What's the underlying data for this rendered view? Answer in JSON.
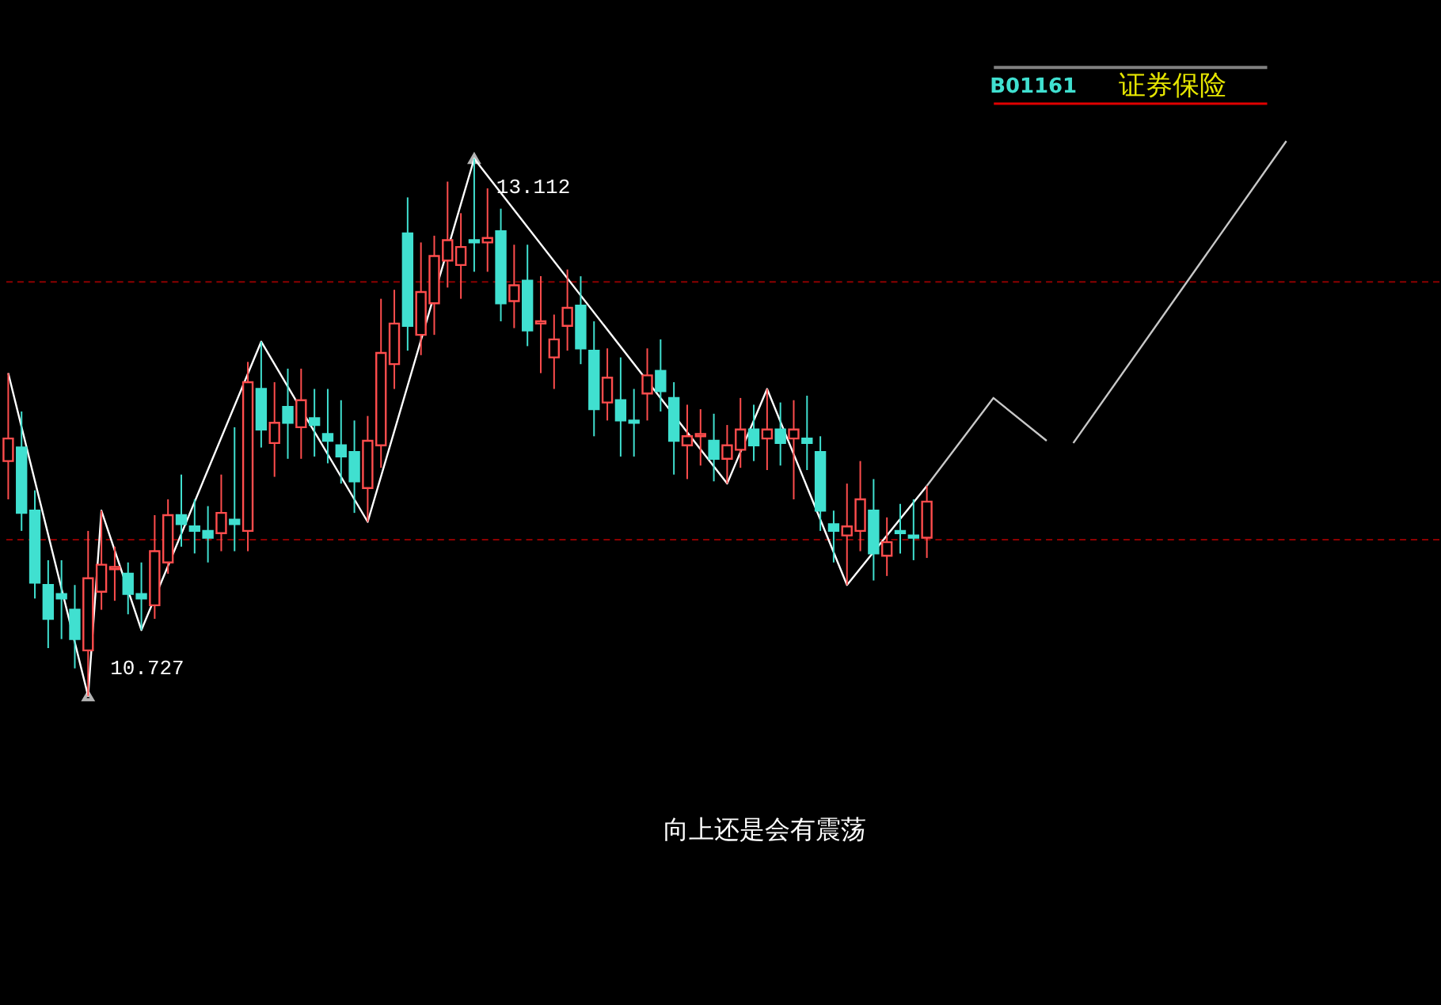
{
  "chart_data": {
    "type": "candlestick",
    "categories": [
      null,
      null,
      null,
      null,
      null,
      null,
      null,
      null,
      null,
      null,
      null,
      null,
      null,
      null,
      null,
      null,
      null,
      null,
      null,
      null,
      null,
      null,
      null,
      null,
      null,
      null,
      null,
      null,
      null,
      null,
      null,
      null,
      null,
      null,
      null,
      null,
      null,
      null,
      null,
      null,
      null,
      null,
      null,
      null,
      null,
      null,
      null,
      null,
      null,
      null,
      null,
      null,
      null,
      null,
      null,
      null,
      null,
      null,
      null,
      null,
      null,
      null,
      null,
      null,
      null,
      null,
      null,
      null,
      null,
      null,
      null,
      null,
      null,
      null,
      null,
      null,
      null,
      null,
      null,
      null,
      null,
      null,
      null,
      null,
      null,
      null,
      null,
      null,
      null,
      null,
      null,
      null,
      null,
      null,
      null,
      null,
      null,
      null,
      null,
      null,
      null,
      null,
      null,
      null,
      null,
      null,
      null,
      null
    ],
    "ohlc": [
      [
        11.77,
        12.16,
        11.6,
        11.87
      ],
      [
        11.83,
        11.99,
        11.46,
        11.54
      ],
      [
        11.55,
        11.64,
        11.16,
        11.23
      ],
      [
        11.22,
        11.33,
        10.94,
        11.07
      ],
      [
        11.18,
        11.33,
        10.98,
        11.16
      ],
      [
        11.11,
        11.22,
        10.85,
        10.98
      ],
      [
        10.93,
        11.46,
        10.727,
        11.25
      ],
      [
        11.19,
        11.55,
        11.11,
        11.31
      ],
      [
        11.29,
        11.39,
        11.15,
        11.3
      ],
      [
        11.27,
        11.32,
        11.09,
        11.18
      ],
      [
        11.18,
        11.32,
        11.02,
        11.16
      ],
      [
        11.13,
        11.53,
        11.07,
        11.37
      ],
      [
        11.32,
        11.6,
        11.27,
        11.53
      ],
      [
        11.53,
        11.71,
        11.39,
        11.49
      ],
      [
        11.48,
        11.6,
        11.36,
        11.46
      ],
      [
        11.46,
        11.57,
        11.32,
        11.43
      ],
      [
        11.45,
        11.71,
        11.37,
        11.54
      ],
      [
        11.51,
        11.92,
        11.37,
        11.49
      ],
      [
        11.46,
        12.21,
        11.37,
        12.12
      ],
      [
        12.09,
        12.3,
        11.83,
        11.91
      ],
      [
        11.85,
        12.12,
        11.7,
        11.94
      ],
      [
        12.01,
        12.18,
        11.78,
        11.94
      ],
      [
        11.92,
        12.18,
        11.78,
        12.04
      ],
      [
        11.96,
        12.09,
        11.79,
        11.93
      ],
      [
        11.89,
        12.09,
        11.76,
        11.86
      ],
      [
        11.84,
        12.04,
        11.67,
        11.79
      ],
      [
        11.81,
        11.95,
        11.54,
        11.68
      ],
      [
        11.65,
        11.97,
        11.5,
        11.86
      ],
      [
        11.84,
        12.49,
        11.74,
        12.25
      ],
      [
        12.2,
        12.53,
        12.09,
        12.38
      ],
      [
        12.78,
        12.94,
        12.26,
        12.37
      ],
      [
        12.33,
        12.74,
        12.24,
        12.52
      ],
      [
        12.47,
        12.77,
        12.33,
        12.68
      ],
      [
        12.66,
        13.01,
        12.54,
        12.75
      ],
      [
        12.64,
        12.87,
        12.49,
        12.72
      ],
      [
        12.75,
        13.112,
        12.61,
        12.74
      ],
      [
        12.74,
        12.98,
        12.61,
        12.76
      ],
      [
        12.79,
        12.89,
        12.39,
        12.47
      ],
      [
        12.48,
        12.73,
        12.36,
        12.55
      ],
      [
        12.57,
        12.73,
        12.28,
        12.35
      ],
      [
        12.38,
        12.59,
        12.16,
        12.39
      ],
      [
        12.23,
        12.42,
        12.09,
        12.31
      ],
      [
        12.37,
        12.62,
        12.26,
        12.45
      ],
      [
        12.46,
        12.59,
        12.2,
        12.27
      ],
      [
        12.26,
        12.39,
        11.88,
        12.0
      ],
      [
        12.03,
        12.27,
        11.95,
        12.14
      ],
      [
        12.04,
        12.23,
        11.79,
        11.95
      ],
      [
        11.95,
        12.09,
        11.79,
        11.94
      ],
      [
        12.07,
        12.27,
        11.95,
        12.15
      ],
      [
        12.17,
        12.31,
        11.99,
        12.08
      ],
      [
        12.05,
        12.12,
        11.71,
        11.86
      ],
      [
        11.84,
        12.02,
        11.69,
        11.88
      ],
      [
        11.88,
        12.0,
        11.75,
        11.89
      ],
      [
        11.86,
        11.98,
        11.68,
        11.78
      ],
      [
        11.78,
        11.93,
        11.67,
        11.84
      ],
      [
        11.82,
        12.05,
        11.74,
        11.91
      ],
      [
        11.91,
        12.02,
        11.77,
        11.84
      ],
      [
        11.87,
        12.09,
        11.73,
        11.91
      ],
      [
        11.91,
        12.03,
        11.75,
        11.85
      ],
      [
        11.87,
        12.04,
        11.6,
        11.91
      ],
      [
        11.87,
        12.06,
        11.73,
        11.85
      ],
      [
        11.81,
        11.88,
        11.46,
        11.55
      ],
      [
        11.49,
        11.55,
        11.32,
        11.46
      ],
      [
        11.44,
        11.67,
        11.22,
        11.48
      ],
      [
        11.46,
        11.77,
        11.37,
        11.6
      ],
      [
        11.55,
        11.69,
        11.24,
        11.36
      ],
      [
        11.35,
        11.52,
        11.26,
        11.41
      ],
      [
        11.46,
        11.58,
        11.36,
        11.45
      ],
      [
        11.44,
        11.6,
        11.33,
        11.43
      ],
      [
        11.43,
        11.66,
        11.34,
        11.59
      ],
      null,
      null,
      null,
      null,
      null,
      null,
      null,
      null,
      null,
      null,
      null,
      null,
      null,
      null,
      null,
      null,
      null,
      null,
      null,
      null,
      null,
      null,
      null,
      null,
      null,
      null,
      null,
      null,
      null,
      null,
      null,
      null,
      null,
      null,
      null,
      null,
      null,
      null
    ],
    "colors": [
      "#ff4d4d",
      "#40e0d0",
      "#40e0d0",
      "#40e0d0",
      "#40e0d0",
      "#40e0d0",
      "#ff4d4d",
      "#ff4d4d",
      "#ff4d4d",
      "#40e0d0",
      "#40e0d0",
      "#ff4d4d",
      "#ff4d4d",
      "#40e0d0",
      "#40e0d0",
      "#40e0d0",
      "#ff4d4d",
      "#40e0d0",
      "#ff4d4d",
      "#40e0d0",
      "#ff4d4d",
      "#40e0d0",
      "#ff4d4d",
      "#40e0d0",
      "#40e0d0",
      "#40e0d0",
      "#40e0d0",
      "#ff4d4d",
      "#ff4d4d",
      "#ff4d4d",
      "#40e0d0",
      "#ff4d4d",
      "#ff4d4d",
      "#ff4d4d",
      "#ff4d4d",
      "#40e0d0",
      "#ff4d4d",
      "#40e0d0",
      "#ff4d4d",
      "#40e0d0",
      "#ff4d4d",
      "#ff4d4d",
      "#ff4d4d",
      "#40e0d0",
      "#40e0d0",
      "#ff4d4d",
      "#40e0d0",
      "#40e0d0",
      "#ff4d4d",
      "#40e0d0",
      "#40e0d0",
      "#ff4d4d",
      "#ff4d4d",
      "#40e0d0",
      "#ff4d4d",
      "#ff4d4d",
      "#40e0d0",
      "#ff4d4d",
      "#40e0d0",
      "#ff4d4d",
      "#40e0d0",
      "#40e0d0",
      "#40e0d0",
      "#ff4d4d",
      "#ff4d4d",
      "#40e0d0",
      "#ff4d4d",
      "#40e0d0",
      "#40e0d0",
      "#ff4d4d",
      null,
      null,
      null,
      null,
      null,
      null,
      null,
      null,
      null,
      null,
      null,
      null,
      null,
      null,
      null,
      null,
      null,
      null,
      null,
      null,
      null,
      null,
      null,
      null,
      null,
      null,
      null,
      null,
      null,
      null,
      null,
      null,
      null,
      null,
      null,
      null,
      null,
      null
    ],
    "series": [
      {
        "type": "line",
        "color": "#ffffff",
        "values": [
          12.16,
          null,
          null,
          null,
          null,
          null,
          10.727,
          11.55,
          null,
          null,
          11.02,
          null,
          null,
          null,
          null,
          null,
          null,
          null,
          null,
          12.3,
          null,
          null,
          null,
          null,
          null,
          null,
          null,
          11.5,
          null,
          null,
          null,
          null,
          null,
          null,
          null,
          13.112,
          null,
          null,
          null,
          null,
          null,
          null,
          null,
          null,
          null,
          null,
          null,
          null,
          null,
          null,
          null,
          null,
          null,
          null,
          11.67,
          null,
          null,
          12.09,
          null,
          null,
          null,
          null,
          null,
          11.22,
          null,
          null,
          null,
          null,
          null,
          11.66,
          null,
          null,
          null,
          null,
          null,
          null,
          null,
          null,
          null,
          null,
          null,
          null,
          null,
          null,
          null,
          null,
          null,
          null,
          null,
          null,
          null,
          null,
          null,
          null,
          null,
          null,
          null,
          null,
          null,
          null,
          null,
          null,
          null,
          null,
          null,
          null,
          null,
          null
        ]
      },
      {
        "type": "line",
        "color": "#c8c8c8",
        "values": [
          null,
          null,
          null,
          null,
          null,
          null,
          null,
          null,
          null,
          null,
          null,
          null,
          null,
          null,
          null,
          null,
          null,
          null,
          null,
          null,
          null,
          null,
          null,
          null,
          null,
          null,
          null,
          null,
          null,
          null,
          null,
          null,
          null,
          null,
          null,
          null,
          null,
          null,
          null,
          null,
          null,
          null,
          null,
          null,
          null,
          null,
          null,
          null,
          null,
          null,
          null,
          null,
          null,
          null,
          null,
          null,
          null,
          null,
          null,
          null,
          null,
          null,
          null,
          null,
          null,
          null,
          null,
          null,
          null,
          11.66,
          null,
          null,
          null,
          null,
          12.05,
          null,
          null,
          null,
          11.86,
          null,
          null,
          null,
          null,
          null,
          null,
          null,
          null,
          null,
          null,
          null,
          null,
          null,
          null,
          null,
          null,
          null,
          null,
          null,
          null,
          null,
          null,
          null,
          null,
          null,
          null,
          null,
          null,
          null
        ]
      },
      {
        "type": "line",
        "color": "#c8c8c8",
        "values": [
          null,
          null,
          null,
          null,
          null,
          null,
          null,
          null,
          null,
          null,
          null,
          null,
          null,
          null,
          null,
          null,
          null,
          null,
          null,
          null,
          null,
          null,
          null,
          null,
          null,
          null,
          null,
          null,
          null,
          null,
          null,
          null,
          null,
          null,
          null,
          null,
          null,
          null,
          null,
          null,
          null,
          null,
          null,
          null,
          null,
          null,
          null,
          null,
          null,
          null,
          null,
          null,
          null,
          null,
          null,
          null,
          null,
          null,
          null,
          null,
          null,
          null,
          null,
          null,
          null,
          null,
          null,
          null,
          null,
          null,
          null,
          null,
          null,
          null,
          null,
          null,
          null,
          null,
          null,
          null,
          11.85,
          null,
          null,
          null,
          null,
          null,
          null,
          null,
          null,
          null,
          null,
          null,
          null,
          null,
          null,
          null,
          13.19,
          null,
          null,
          null,
          null,
          null,
          null,
          null,
          null,
          null,
          null,
          null
        ]
      }
    ],
    "ylim": [
      9.34,
      13.79
    ],
    "tick_labels": false,
    "ref_lines": [
      {
        "axis": "y",
        "value": 12.565,
        "color": "#8b0000",
        "line_style": "dashed"
      },
      {
        "axis": "y",
        "value": 11.421,
        "color": "#8b0000",
        "line_style": "dashed"
      }
    ],
    "annotations": [
      "13.112",
      "10.727",
      "向上还是会有震荡",
      "B01161",
      "证券保险"
    ]
  }
}
